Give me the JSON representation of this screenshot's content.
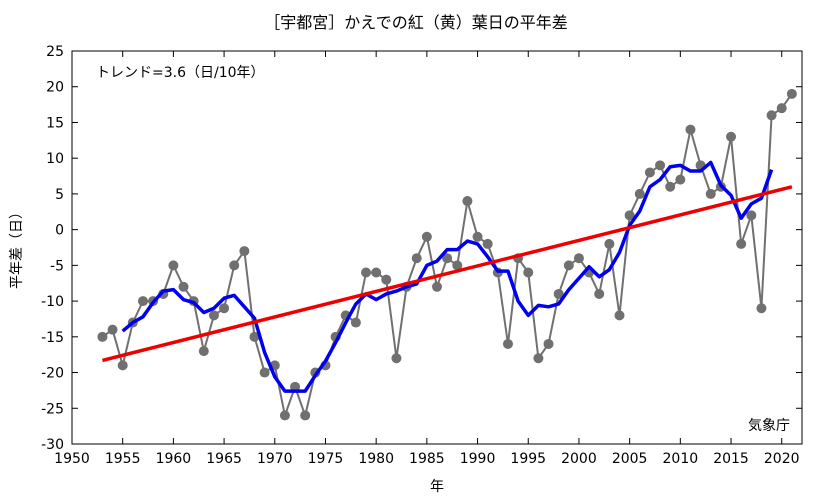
{
  "chart_data": {
    "type": "line",
    "title": "［宇都宮］かえでの紅（黄）葉日の平年差",
    "xlabel": "年",
    "ylabel": "平年差（日）",
    "trend_label": "トレンド=3.6（日/10年）",
    "source_label": "気象庁",
    "xlim": [
      1950,
      2022
    ],
    "ylim": [
      -30,
      25
    ],
    "x_ticks": [
      1950,
      1955,
      1960,
      1965,
      1970,
      1975,
      1980,
      1985,
      1990,
      1995,
      2000,
      2005,
      2010,
      2015,
      2020
    ],
    "y_ticks": [
      -30,
      -25,
      -20,
      -15,
      -10,
      -5,
      0,
      5,
      10,
      15,
      20,
      25
    ],
    "grid": false,
    "colors": {
      "annual": "#707070",
      "annual_marker": "#707070",
      "moving_average": "#0000ee",
      "trend": "#ee0000"
    },
    "series": [
      {
        "role": "annual",
        "x": [
          1953,
          1954,
          1955,
          1956,
          1957,
          1958,
          1959,
          1960,
          1961,
          1962,
          1963,
          1964,
          1965,
          1966,
          1967,
          1968,
          1969,
          1970,
          1971,
          1972,
          1973,
          1974,
          1975,
          1976,
          1977,
          1978,
          1979,
          1980,
          1981,
          1982,
          1983,
          1984,
          1985,
          1986,
          1987,
          1988,
          1989,
          1990,
          1991,
          1992,
          1993,
          1994,
          1995,
          1996,
          1997,
          1998,
          1999,
          2000,
          2001,
          2002,
          2003,
          2004,
          2005,
          2006,
          2007,
          2008,
          2009,
          2010,
          2011,
          2012,
          2013,
          2014,
          2015,
          2016,
          2017,
          2018,
          2019,
          2020,
          2021
        ],
        "y": [
          -15,
          -14,
          -19,
          -13,
          -10,
          -10,
          -9,
          -5,
          -8,
          -10,
          -17,
          -12,
          -11,
          -5,
          -3,
          -15,
          -20,
          -19,
          -26,
          -22,
          -26,
          -20,
          -19,
          -15,
          -12,
          -13,
          -6,
          -6,
          -7,
          -18,
          -8,
          -4,
          -1,
          -8,
          -4,
          -5,
          4,
          -1,
          -2,
          -6,
          -16,
          -4,
          -6,
          -18,
          -16,
          -9,
          -5,
          -4,
          -6,
          -9,
          -2,
          -12,
          2,
          5,
          8,
          9,
          6,
          7,
          14,
          9,
          5,
          6,
          13,
          -2,
          2,
          -11,
          16,
          17,
          19
        ]
      },
      {
        "role": "moving_average",
        "x": [
          1955,
          1956,
          1957,
          1958,
          1959,
          1960,
          1961,
          1962,
          1963,
          1964,
          1965,
          1966,
          1967,
          1968,
          1969,
          1970,
          1971,
          1972,
          1973,
          1974,
          1975,
          1976,
          1977,
          1978,
          1979,
          1980,
          1981,
          1982,
          1983,
          1984,
          1985,
          1986,
          1987,
          1988,
          1989,
          1990,
          1991,
          1992,
          1993,
          1994,
          1995,
          1996,
          1997,
          1998,
          1999,
          2000,
          2001,
          2002,
          2003,
          2004,
          2005,
          2006,
          2007,
          2008,
          2009,
          2010,
          2011,
          2012,
          2013,
          2014,
          2015,
          2016,
          2017,
          2018,
          2019
        ],
        "y": [
          -14.2,
          -13.0,
          -12.2,
          -10.2,
          -8.6,
          -8.4,
          -9.8,
          -10.2,
          -11.6,
          -11.0,
          -9.6,
          -9.2,
          -10.8,
          -12.4,
          -17.2,
          -20.6,
          -22.6,
          -22.6,
          -22.6,
          -20.4,
          -18.4,
          -15.8,
          -13.0,
          -10.4,
          -9.0,
          -9.8,
          -9.0,
          -8.6,
          -8.0,
          -7.6,
          -5.0,
          -4.4,
          -2.8,
          -2.8,
          -1.6,
          -2.0,
          -3.8,
          -5.8,
          -5.8,
          -10.0,
          -12.0,
          -10.6,
          -10.8,
          -10.4,
          -8.4,
          -6.8,
          -5.2,
          -6.6,
          -5.6,
          -3.2,
          0.6,
          2.6,
          6.0,
          7.0,
          8.8,
          9.0,
          8.2,
          8.2,
          9.4,
          6.2,
          4.8,
          1.6,
          3.6,
          4.4,
          8.4
        ]
      },
      {
        "role": "trend",
        "x": [
          1953,
          2021
        ],
        "y": [
          -18.3,
          6.0
        ]
      }
    ]
  }
}
